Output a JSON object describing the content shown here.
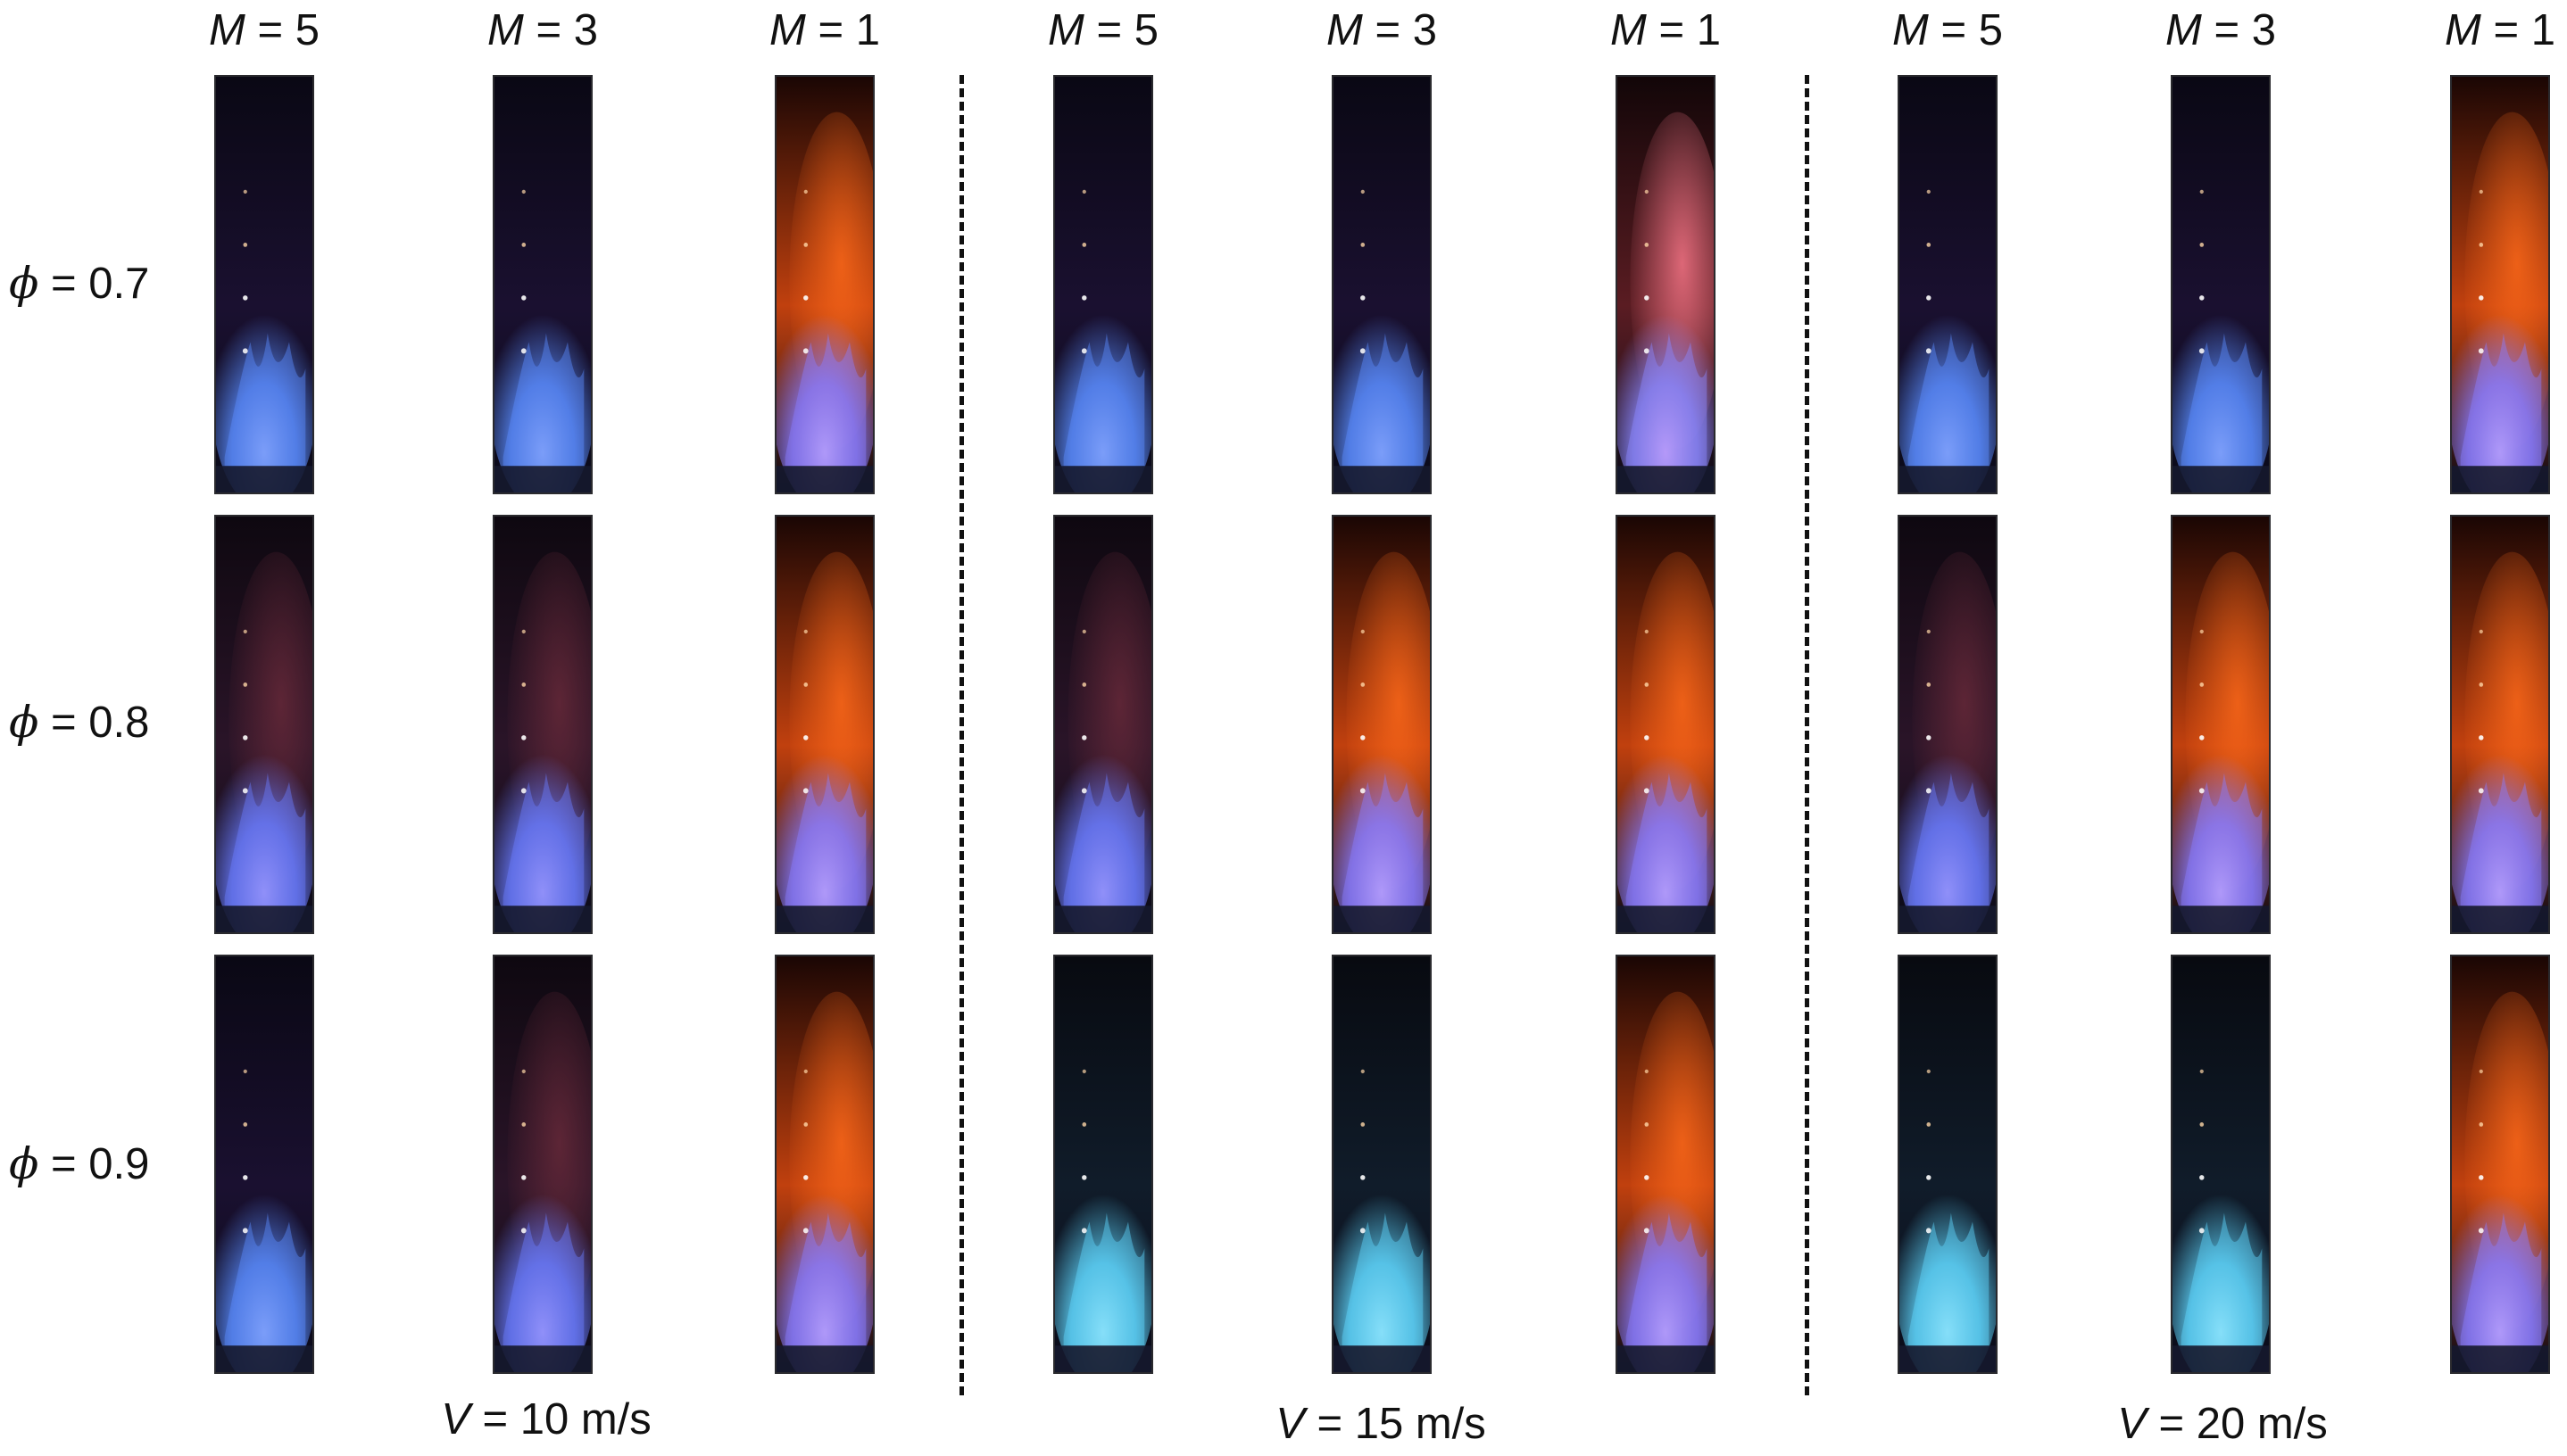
{
  "figure": {
    "m_prefix": "M",
    "m_values": [
      "5",
      "3",
      "1"
    ],
    "phi_symbol": "ϕ",
    "phi_values": [
      "0.7",
      "0.8",
      "0.9"
    ],
    "v_prefix": "V",
    "v_values": [
      "10 m/s",
      "15 m/s",
      "20 m/s"
    ],
    "equals": " = "
  },
  "colors": {
    "background": "#ffffff",
    "text": "#111111",
    "flame_blue": "#5a8cff",
    "flame_cyan": "#5fd8ff",
    "flame_orange": "#ff6a1a",
    "flame_pink": "#ff7a8c",
    "photo_dark": "#07060a"
  },
  "photo_grid": [
    [
      "blue",
      "blue",
      "orange",
      "blue",
      "blue",
      "pink",
      "blue",
      "blue",
      "orange"
    ],
    [
      "purple",
      "purple",
      "orange",
      "purple",
      "orange",
      "orange",
      "purple",
      "orange",
      "orange"
    ],
    [
      "blue",
      "purple",
      "orange",
      "cyan",
      "cyan",
      "orange",
      "cyan",
      "cyan",
      "orange"
    ]
  ]
}
